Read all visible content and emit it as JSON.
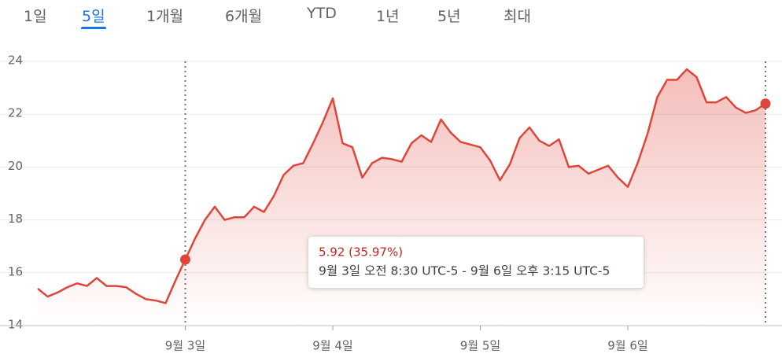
{
  "tabs": [
    "1일",
    "5일",
    "1개월",
    "6개월",
    "YTD",
    "1년",
    "5년",
    "최대"
  ],
  "tooltip": {
    "change": "5.92 (35.97%)",
    "range": "9월 3일 오전 8:30 UTC-5 - 9월 6일 오후 3:15 UTC-5"
  },
  "chart_data": {
    "type": "line",
    "x": [
      0,
      1,
      2,
      3,
      4,
      5,
      6,
      7,
      8,
      9,
      10,
      11,
      12,
      13,
      14,
      15,
      16,
      17,
      18,
      19,
      20,
      21,
      22,
      23,
      24,
      25,
      26,
      27,
      28,
      29,
      30,
      31,
      32,
      33,
      34,
      35,
      36,
      37,
      38,
      39,
      40,
      41,
      42,
      43,
      44,
      45,
      46,
      47,
      48,
      49,
      50,
      51,
      52,
      53,
      54,
      55,
      56,
      57,
      58,
      59,
      60,
      61,
      62,
      63,
      64,
      65,
      66,
      67,
      68,
      69,
      70,
      71,
      72,
      73,
      74
    ],
    "series": [
      {
        "color": "#e0453a",
        "values": [
          15.4,
          15.1,
          15.25,
          15.45,
          15.6,
          15.5,
          15.8,
          15.5,
          15.5,
          15.45,
          15.2,
          15.0,
          14.95,
          14.85,
          15.7,
          16.5,
          17.3,
          18.0,
          18.5,
          18.0,
          18.1,
          18.1,
          18.5,
          18.3,
          18.9,
          19.7,
          20.05,
          20.15,
          20.9,
          21.7,
          22.6,
          20.9,
          20.75,
          19.6,
          20.15,
          20.35,
          20.3,
          20.2,
          20.9,
          21.2,
          20.95,
          21.8,
          21.3,
          20.95,
          20.85,
          20.75,
          20.25,
          19.5,
          20.1,
          21.1,
          21.5,
          21.0,
          20.8,
          21.05,
          20.0,
          20.05,
          19.75,
          19.9,
          20.05,
          19.6,
          19.25,
          20.15,
          21.25,
          22.65,
          23.3,
          23.3,
          23.7,
          23.4,
          22.45,
          22.45,
          22.65,
          22.25,
          22.05,
          22.15,
          22.4
        ]
      }
    ],
    "xlim": [
      0,
      74
    ],
    "xticks": [
      {
        "value": 15,
        "label": "9월 3일"
      },
      {
        "value": 30,
        "label": "9월 4일"
      },
      {
        "value": 45,
        "label": "9월 5일"
      },
      {
        "value": 60,
        "label": "9월 6일"
      }
    ],
    "ylim": [
      14,
      24
    ],
    "yticks": [
      14,
      16,
      18,
      20,
      22,
      24
    ],
    "grid": true
  }
}
